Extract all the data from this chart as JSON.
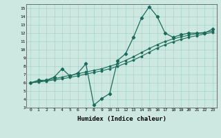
{
  "xlabel": "Humidex (Indice chaleur)",
  "background_color": "#cce8e0",
  "line_color": "#1a6b5a",
  "xlim": [
    -0.5,
    23.5
  ],
  "ylim": [
    3,
    15.5
  ],
  "yticks": [
    3,
    4,
    5,
    6,
    7,
    8,
    9,
    10,
    11,
    12,
    13,
    14,
    15
  ],
  "xticks": [
    0,
    1,
    2,
    3,
    4,
    5,
    6,
    7,
    8,
    9,
    10,
    11,
    12,
    13,
    14,
    15,
    16,
    17,
    18,
    19,
    20,
    21,
    22,
    23
  ],
  "zigzag_x": [
    0,
    1,
    2,
    3,
    4,
    5,
    6,
    7,
    8,
    9,
    10,
    11,
    12,
    13,
    14,
    15,
    16,
    17,
    18,
    19,
    20,
    21,
    22,
    23
  ],
  "zigzag_y": [
    6.0,
    6.3,
    6.3,
    6.7,
    7.7,
    6.8,
    7.2,
    8.3,
    3.3,
    4.1,
    4.7,
    8.7,
    9.5,
    11.5,
    13.8,
    15.2,
    14.0,
    12.0,
    11.5,
    11.8,
    12.0,
    12.0,
    12.0,
    12.5
  ],
  "trend1_x": [
    0,
    1,
    2,
    3,
    4,
    5,
    6,
    7,
    8,
    9,
    10,
    11,
    12,
    13,
    14,
    15,
    16,
    17,
    18,
    19,
    20,
    21,
    22,
    23
  ],
  "trend1_y": [
    6.0,
    6.1,
    6.2,
    6.35,
    6.5,
    6.65,
    6.85,
    7.05,
    7.25,
    7.45,
    7.7,
    8.0,
    8.35,
    8.75,
    9.2,
    9.7,
    10.2,
    10.6,
    10.95,
    11.25,
    11.5,
    11.7,
    11.9,
    12.1
  ],
  "trend2_x": [
    0,
    1,
    2,
    3,
    4,
    5,
    6,
    7,
    8,
    9,
    10,
    11,
    12,
    13,
    14,
    15,
    16,
    17,
    18,
    19,
    20,
    21,
    22,
    23
  ],
  "trend2_y": [
    6.0,
    6.15,
    6.3,
    6.5,
    6.7,
    6.9,
    7.1,
    7.3,
    7.5,
    7.7,
    8.0,
    8.3,
    8.7,
    9.15,
    9.65,
    10.15,
    10.6,
    11.0,
    11.3,
    11.55,
    11.75,
    11.95,
    12.1,
    12.25
  ]
}
